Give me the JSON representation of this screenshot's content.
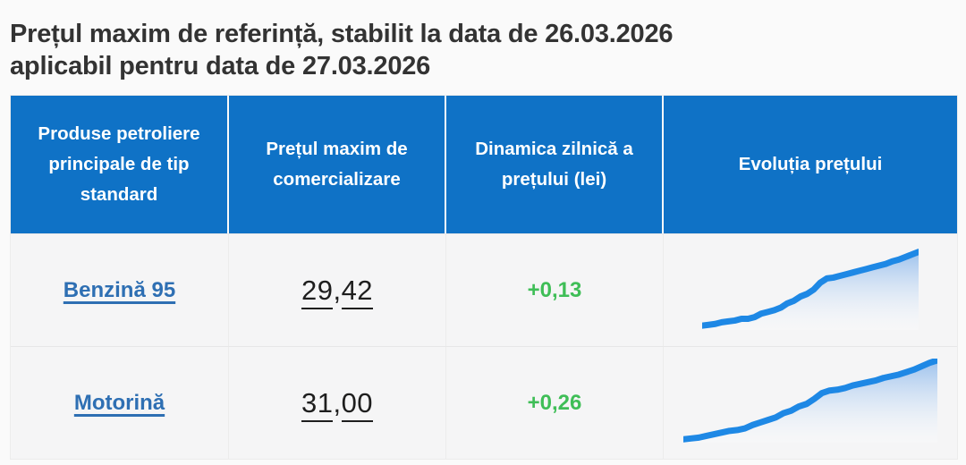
{
  "title": {
    "line1": "Prețul maxim de referință, stabilit la data de 26.03.2026",
    "line2": "aplicabil pentru data de 27.03.2026"
  },
  "table": {
    "headers": [
      "Produse petroliere principale de tip standard",
      "Prețul maxim de comercializare",
      "Dinamica zilnică a prețului (lei)",
      "Evoluția prețului"
    ],
    "rows": [
      {
        "product": "Benzină 95",
        "price": "29,42",
        "price_parts": [
          "29",
          ",",
          "42"
        ],
        "change": "+0,13"
      },
      {
        "product": "Motorină",
        "price": "31,00",
        "price_parts": [
          "31",
          ",",
          "00"
        ],
        "change": "+0,26"
      }
    ]
  },
  "colors": {
    "header_bg": "#0f72c6",
    "link_blue": "#2e6fb3",
    "change_positive_green": "#3fbe57",
    "spark_line_blue": "#1e88e5",
    "spark_fill_top": "#86b4ea",
    "title_text": "#333333",
    "page_bg": "#fafafa"
  },
  "chart_data": [
    {
      "type": "area",
      "name": "Evoluția prețului — Benzină 95",
      "trend": "rising",
      "x": "time (unlabeled sparkline)",
      "ylim": [
        0,
        100
      ],
      "values": [
        5,
        6,
        7,
        9,
        10,
        11,
        13,
        13,
        15,
        19,
        21,
        23,
        26,
        31,
        34,
        39,
        42,
        47,
        55,
        60,
        61,
        63,
        65,
        67,
        69,
        71,
        73,
        75,
        77,
        80,
        82,
        85,
        88,
        91
      ]
    },
    {
      "type": "area",
      "name": "Evoluția prețului — Motorină",
      "trend": "rising",
      "x": "time (unlabeled sparkline)",
      "ylim": [
        0,
        100
      ],
      "values": [
        4,
        5,
        6,
        8,
        10,
        12,
        14,
        15,
        17,
        21,
        24,
        27,
        30,
        35,
        38,
        43,
        46,
        52,
        59,
        62,
        63,
        65,
        68,
        70,
        72,
        74,
        77,
        79,
        81,
        84,
        87,
        91,
        95,
        98
      ]
    }
  ]
}
